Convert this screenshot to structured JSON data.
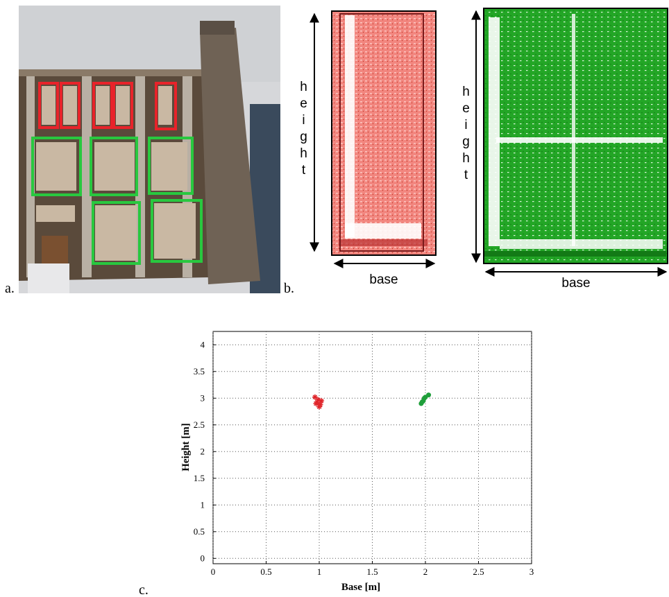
{
  "panels": {
    "a": {
      "label": "a."
    },
    "b": {
      "label": "b.",
      "left": {
        "height_label": "height",
        "base_label": "base"
      },
      "right": {
        "height_label": "height",
        "base_label": "base"
      }
    },
    "c": {
      "label": "c."
    }
  },
  "chart_data": {
    "type": "scatter",
    "xlabel": "Base [m]",
    "ylabel": "Height [m]",
    "xlim": [
      0,
      3
    ],
    "ylim": [
      -0.1,
      4.25
    ],
    "xticks": [
      0,
      0.5,
      1,
      1.5,
      2,
      2.5,
      3
    ],
    "yticks": [
      0,
      0.5,
      1,
      1.5,
      2,
      2.5,
      3,
      3.5,
      4
    ],
    "grid": true,
    "series": [
      {
        "color": "#e0262b",
        "marker": "star",
        "x": [
          0.96,
          0.99,
          1.02,
          0.98,
          1.01,
          1.0,
          0.97
        ],
        "values": [
          3.02,
          2.97,
          2.95,
          2.92,
          2.88,
          2.84,
          2.9
        ]
      },
      {
        "color": "#1f9e3a",
        "marker": "circle",
        "x": [
          1.96,
          1.98,
          2.0,
          2.03,
          1.99,
          1.97
        ],
        "values": [
          2.9,
          2.95,
          3.02,
          3.06,
          3.0,
          2.93
        ]
      }
    ]
  }
}
